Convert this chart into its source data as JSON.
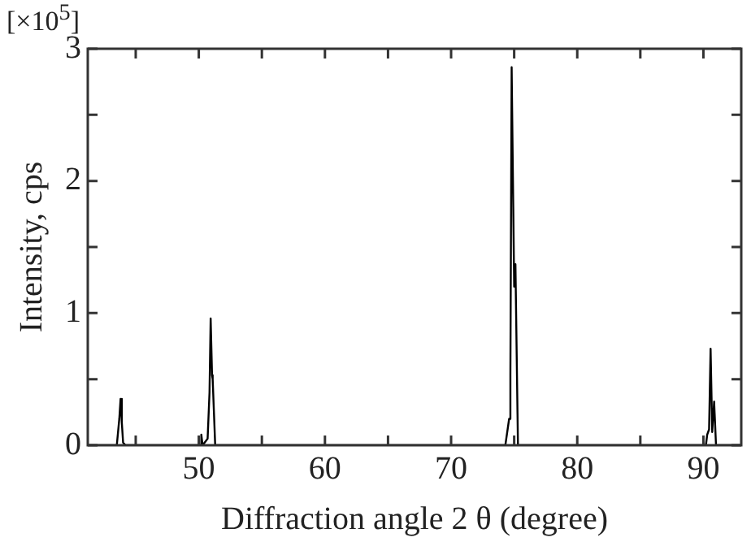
{
  "chart_data": {
    "type": "line",
    "xlabel": "Diffraction angle 2 θ (degree)",
    "ylabel": "Intensity, cps",
    "annotations": [
      "[×10$^{5}$]"
    ],
    "x": [
      41.2,
      43.5,
      43.7,
      43.8,
      43.9,
      44.0,
      44.2,
      50.1,
      50.2,
      50.3,
      50.7,
      50.85,
      50.94,
      51.05,
      51.1,
      51.3,
      74.3,
      74.6,
      74.7,
      74.8,
      75.0,
      75.1,
      75.3,
      90.2,
      90.3,
      90.45,
      90.57,
      90.7,
      90.85,
      91.0,
      93
    ],
    "series": [
      {
        "color": "#000000",
        "values": [
          0,
          0,
          0.2,
          0.35,
          0.17,
          0.02,
          0,
          0,
          0.08,
          0,
          0.05,
          0.4,
          0.96,
          0.53,
          0.5,
          0,
          0,
          0.2,
          0.53,
          2.86,
          1.2,
          1.37,
          0,
          0,
          0.08,
          0.12,
          0.73,
          0.1,
          0.33,
          0,
          0
        ]
      }
    ],
    "xlim": [
      41.2,
      93
    ],
    "ylim": [
      0,
      3
    ],
    "xticks": [
      {
        "value": 45,
        "label": null
      },
      50,
      {
        "value": 55,
        "label": null
      },
      60,
      {
        "value": 65,
        "label": null
      },
      70,
      {
        "value": 75,
        "label": null
      },
      80,
      {
        "value": 85,
        "label": null
      },
      90
    ],
    "yticks": [
      0,
      {
        "value": 0.5,
        "label": null
      },
      1,
      {
        "value": 1.5,
        "label": null
      },
      2,
      {
        "value": 2.5,
        "label": null
      },
      3
    ],
    "grid": false,
    "legend": false,
    "marker": "none",
    "line_style": "solid"
  }
}
